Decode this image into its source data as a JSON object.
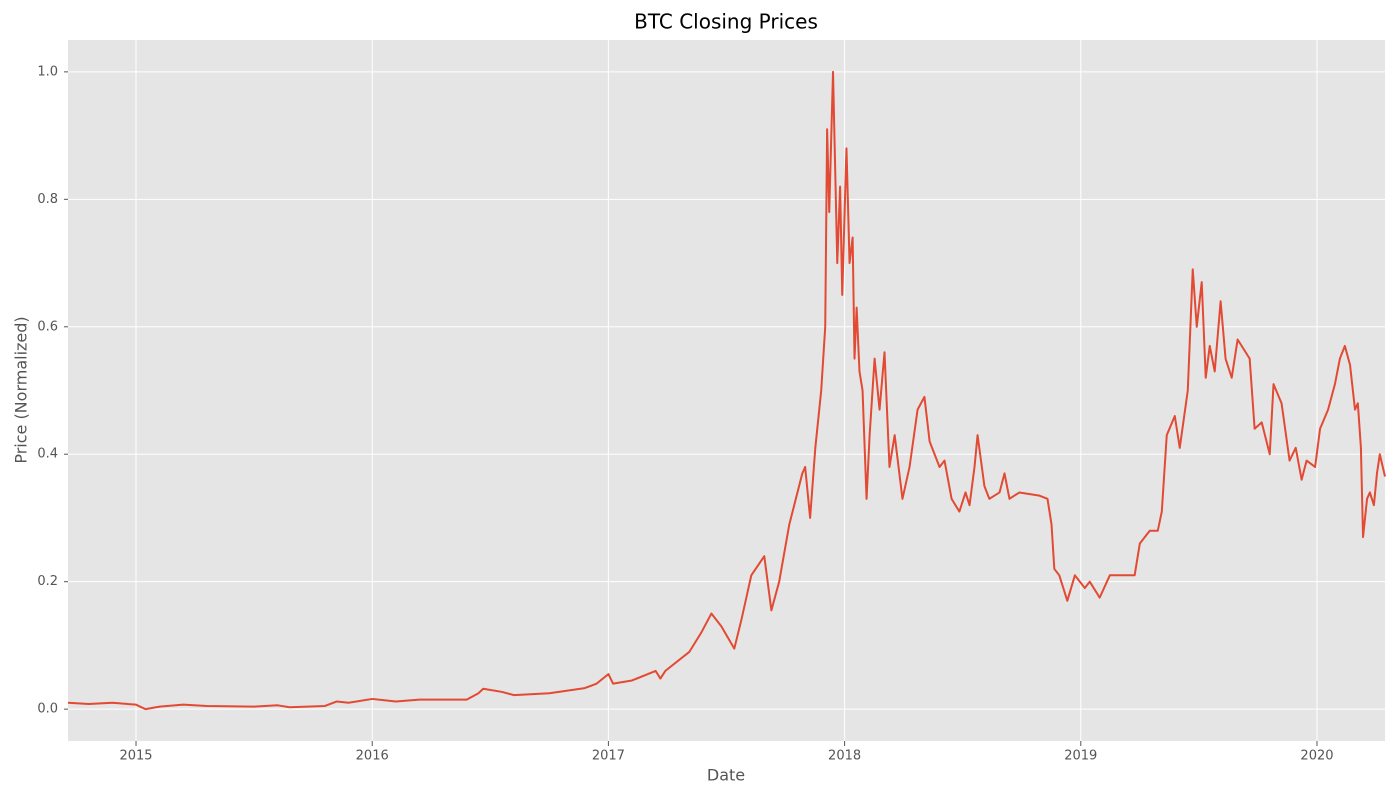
{
  "chart_data": {
    "type": "line",
    "title": "BTC Closing Prices",
    "x_label": "Date",
    "y_label": "Price (Normalized)",
    "color": "#e24a33",
    "grid": true,
    "background": "#e5e5e5",
    "xlim": [
      2014.712,
      2020.288
    ],
    "xticks": [
      2015,
      2016,
      2017,
      2018,
      2019,
      2020
    ],
    "ylim": [
      -0.05,
      1.05
    ],
    "yticks": [
      {
        "value": 0,
        "label": "0.0"
      },
      0.2,
      0.4,
      0.6,
      0.8,
      {
        "value": 1,
        "label": "1.0"
      }
    ],
    "x": [
      2014.712,
      2014.8,
      2014.9,
      2015.0,
      2015.04,
      2015.1,
      2015.2,
      2015.3,
      2015.5,
      2015.6,
      2015.65,
      2015.8,
      2015.85,
      2015.9,
      2016.0,
      2016.1,
      2016.2,
      2016.4,
      2016.45,
      2016.47,
      2016.55,
      2016.6,
      2016.75,
      2016.9,
      2016.95,
      2017.0,
      2017.02,
      2017.1,
      2017.2,
      2017.22,
      2017.241,
      2017.343,
      2017.393,
      2017.436,
      2017.478,
      2017.533,
      2017.563,
      2017.605,
      2017.66,
      2017.69,
      2017.723,
      2017.766,
      2017.821,
      2017.833,
      2017.854,
      2017.876,
      2017.901,
      2017.918,
      2017.926,
      2017.935,
      2017.951,
      2017.969,
      2017.981,
      2017.99,
      2018.008,
      2018.021,
      2018.034,
      2018.042,
      2018.051,
      2018.063,
      2018.076,
      2018.093,
      2018.106,
      2018.127,
      2018.148,
      2018.169,
      2018.19,
      2018.212,
      2018.245,
      2018.275,
      2018.309,
      2018.338,
      2018.36,
      2018.402,
      2018.423,
      2018.453,
      2018.486,
      2018.512,
      2018.529,
      2018.55,
      2018.563,
      2018.592,
      2018.613,
      2018.656,
      2018.677,
      2018.698,
      2018.74,
      2018.825,
      2018.859,
      2018.876,
      2018.888,
      2018.909,
      2018.943,
      2018.975,
      2019.017,
      2019.038,
      2019.08,
      2019.123,
      2019.186,
      2019.228,
      2019.25,
      2019.292,
      2019.326,
      2019.343,
      2019.364,
      2019.398,
      2019.419,
      2019.453,
      2019.474,
      2019.491,
      2019.512,
      2019.529,
      2019.546,
      2019.567,
      2019.592,
      2019.613,
      2019.639,
      2019.664,
      2019.715,
      2019.736,
      2019.766,
      2019.8,
      2019.816,
      2019.85,
      2019.884,
      2019.91,
      2019.935,
      2019.956,
      2019.992,
      2020.013,
      2020.047,
      2020.076,
      2020.097,
      2020.118,
      2020.14,
      2020.161,
      2020.173,
      2020.186,
      2020.195,
      2020.212,
      2020.224,
      2020.241,
      2020.254,
      2020.266,
      2020.288
    ],
    "values": [
      0.01,
      0.008,
      0.01,
      0.007,
      0.0,
      0.004,
      0.007,
      0.005,
      0.004,
      0.006,
      0.003,
      0.005,
      0.012,
      0.01,
      0.016,
      0.012,
      0.015,
      0.015,
      0.025,
      0.032,
      0.027,
      0.022,
      0.025,
      0.033,
      0.04,
      0.055,
      0.04,
      0.045,
      0.06,
      0.048,
      0.06,
      0.09,
      0.12,
      0.15,
      0.13,
      0.095,
      0.14,
      0.21,
      0.24,
      0.155,
      0.2,
      0.29,
      0.37,
      0.38,
      0.3,
      0.41,
      0.5,
      0.6,
      0.91,
      0.78,
      1.0,
      0.7,
      0.82,
      0.65,
      0.88,
      0.7,
      0.74,
      0.55,
      0.63,
      0.53,
      0.5,
      0.33,
      0.43,
      0.55,
      0.47,
      0.56,
      0.38,
      0.43,
      0.33,
      0.38,
      0.47,
      0.49,
      0.42,
      0.38,
      0.39,
      0.33,
      0.31,
      0.34,
      0.32,
      0.38,
      0.43,
      0.35,
      0.33,
      0.34,
      0.37,
      0.33,
      0.34,
      0.335,
      0.33,
      0.29,
      0.22,
      0.21,
      0.17,
      0.21,
      0.19,
      0.2,
      0.175,
      0.21,
      0.21,
      0.21,
      0.26,
      0.28,
      0.28,
      0.31,
      0.43,
      0.46,
      0.41,
      0.5,
      0.69,
      0.6,
      0.67,
      0.52,
      0.57,
      0.53,
      0.64,
      0.55,
      0.52,
      0.58,
      0.55,
      0.44,
      0.45,
      0.4,
      0.51,
      0.48,
      0.39,
      0.41,
      0.36,
      0.39,
      0.38,
      0.44,
      0.47,
      0.51,
      0.55,
      0.57,
      0.54,
      0.47,
      0.48,
      0.41,
      0.27,
      0.33,
      0.34,
      0.32,
      0.37,
      0.4,
      0.365
    ]
  }
}
